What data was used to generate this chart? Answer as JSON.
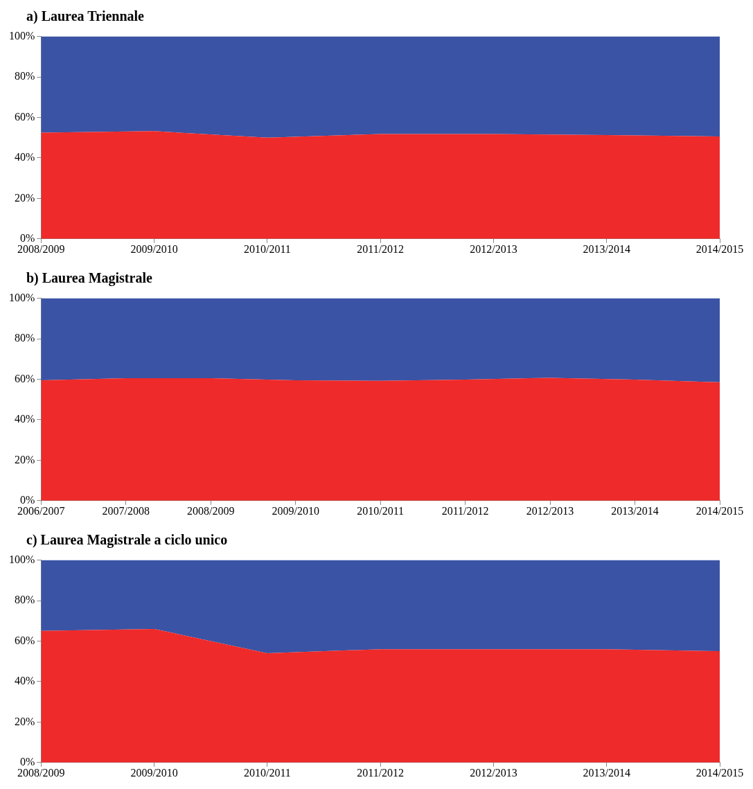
{
  "chart_data": [
    {
      "type": "area",
      "title": "a) Laurea Triennale",
      "stacked": true,
      "grid": false,
      "legend": false,
      "categories": [
        "2008/2009",
        "2009/2010",
        "2010/2011",
        "2011/2012",
        "2012/2013",
        "2013/2014",
        "2014/2015"
      ],
      "series": [
        {
          "color": "#ee2a2a",
          "values": [
            52.5,
            53.2,
            50,
            51.8,
            51.8,
            51.3,
            50.6
          ]
        },
        {
          "color": "#3a53a4",
          "values": [
            47.5,
            46.8,
            50,
            48.2,
            48.2,
            48.7,
            49.4
          ]
        }
      ],
      "ylim": [
        0,
        100
      ],
      "yticks": [
        {
          "value": 0,
          "label": "0%"
        },
        {
          "value": 20,
          "label": "20%"
        },
        {
          "value": 40,
          "label": "40%"
        },
        {
          "value": 60,
          "label": "60%"
        },
        {
          "value": 80,
          "label": "80%"
        },
        {
          "value": 100,
          "label": "100%"
        }
      ]
    },
    {
      "type": "area",
      "title": "b) Laurea Magistrale",
      "stacked": true,
      "grid": false,
      "legend": false,
      "categories": [
        "2006/2007",
        "2007/2008",
        "2008/2009",
        "2009/2010",
        "2010/2011",
        "2011/2012",
        "2012/2013",
        "2013/2014",
        "2014/2015"
      ],
      "series": [
        {
          "color": "#ee2a2a",
          "values": [
            59.5,
            60.5,
            60.5,
            59.5,
            59.2,
            59.8,
            60.7,
            59.8,
            58.5
          ]
        },
        {
          "color": "#3a53a4",
          "values": [
            40.5,
            39.5,
            39.5,
            40.5,
            40.8,
            40.2,
            39.3,
            40.2,
            41.5
          ]
        }
      ],
      "ylim": [
        0,
        100
      ],
      "yticks": [
        {
          "value": 0,
          "label": "0%"
        },
        {
          "value": 20,
          "label": "20%"
        },
        {
          "value": 40,
          "label": "40%"
        },
        {
          "value": 60,
          "label": "60%"
        },
        {
          "value": 80,
          "label": "80%"
        },
        {
          "value": 100,
          "label": "100%"
        }
      ]
    },
    {
      "type": "area",
      "title": "c) Laurea Magistrale a ciclo unico",
      "stacked": true,
      "grid": false,
      "legend": false,
      "categories": [
        "2008/2009",
        "2009/2010",
        "2010/2011",
        "2011/2012",
        "2012/2013",
        "2013/2014",
        "2014/2015"
      ],
      "series": [
        {
          "color": "#ee2a2a",
          "values": [
            65,
            66,
            54,
            56,
            56,
            56,
            55
          ]
        },
        {
          "color": "#3a53a4",
          "values": [
            35,
            34,
            46,
            44,
            44,
            44,
            45
          ]
        }
      ],
      "ylim": [
        0,
        100
      ],
      "yticks": [
        {
          "value": 0,
          "label": "0%"
        },
        {
          "value": 20,
          "label": "20%"
        },
        {
          "value": 40,
          "label": "40%"
        },
        {
          "value": 60,
          "label": "60%"
        },
        {
          "value": 80,
          "label": "80%"
        },
        {
          "value": 100,
          "label": "100%"
        }
      ]
    }
  ]
}
